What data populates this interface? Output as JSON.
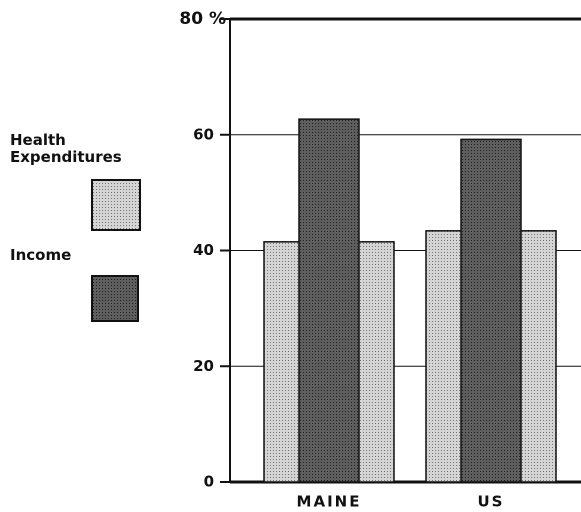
{
  "chart_data": {
    "type": "bar",
    "categories": [
      "MAINE",
      "US"
    ],
    "series": [
      {
        "name": "Health Expenditures",
        "color": "#d4d4d4",
        "values": [
          41.5,
          43.4
        ]
      },
      {
        "name": "Income",
        "color": "#5e5e5e",
        "values": [
          62.7,
          59.2
        ]
      }
    ],
    "ylim": [
      0,
      80
    ],
    "yticks": [
      0,
      20,
      40,
      60,
      {
        "value": 80,
        "label": "80 %"
      }
    ],
    "grid": true
  }
}
